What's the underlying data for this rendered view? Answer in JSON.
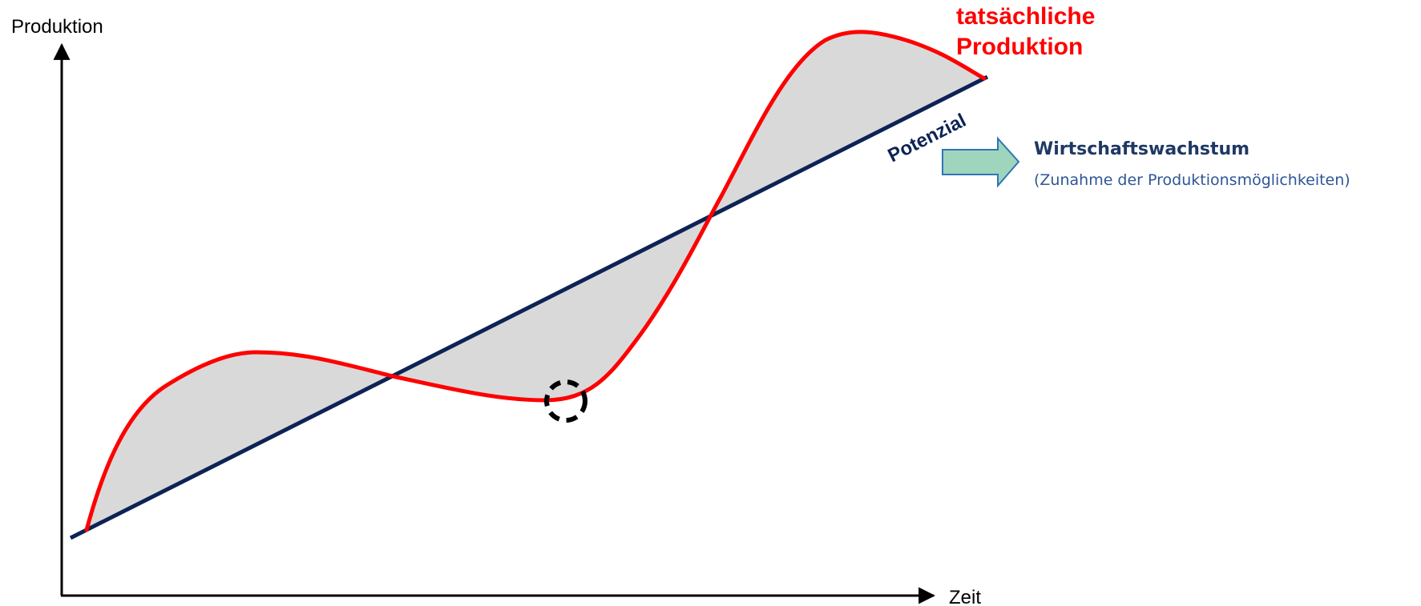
{
  "axes": {
    "y_label": "Produktion",
    "x_label": "Zeit"
  },
  "series": {
    "actual": {
      "label_line1": "tatsächliche",
      "label_line2": "Produktion",
      "color": "#ff0000"
    },
    "potential": {
      "label": "Potenzial",
      "color": "#0d2356"
    }
  },
  "gap_fill_color": "#d9d9d9",
  "marker": {
    "style": "dashed-circle",
    "color": "#000000"
  },
  "callout": {
    "title": "Wirtschaftswachstum",
    "subtitle": "(Zunahme der Produktionsmöglichkeiten)",
    "title_color": "#1f3864",
    "subtitle_color": "#2f5597",
    "arrow_fill": "#9fd4bd",
    "arrow_stroke": "#2e75b6"
  }
}
